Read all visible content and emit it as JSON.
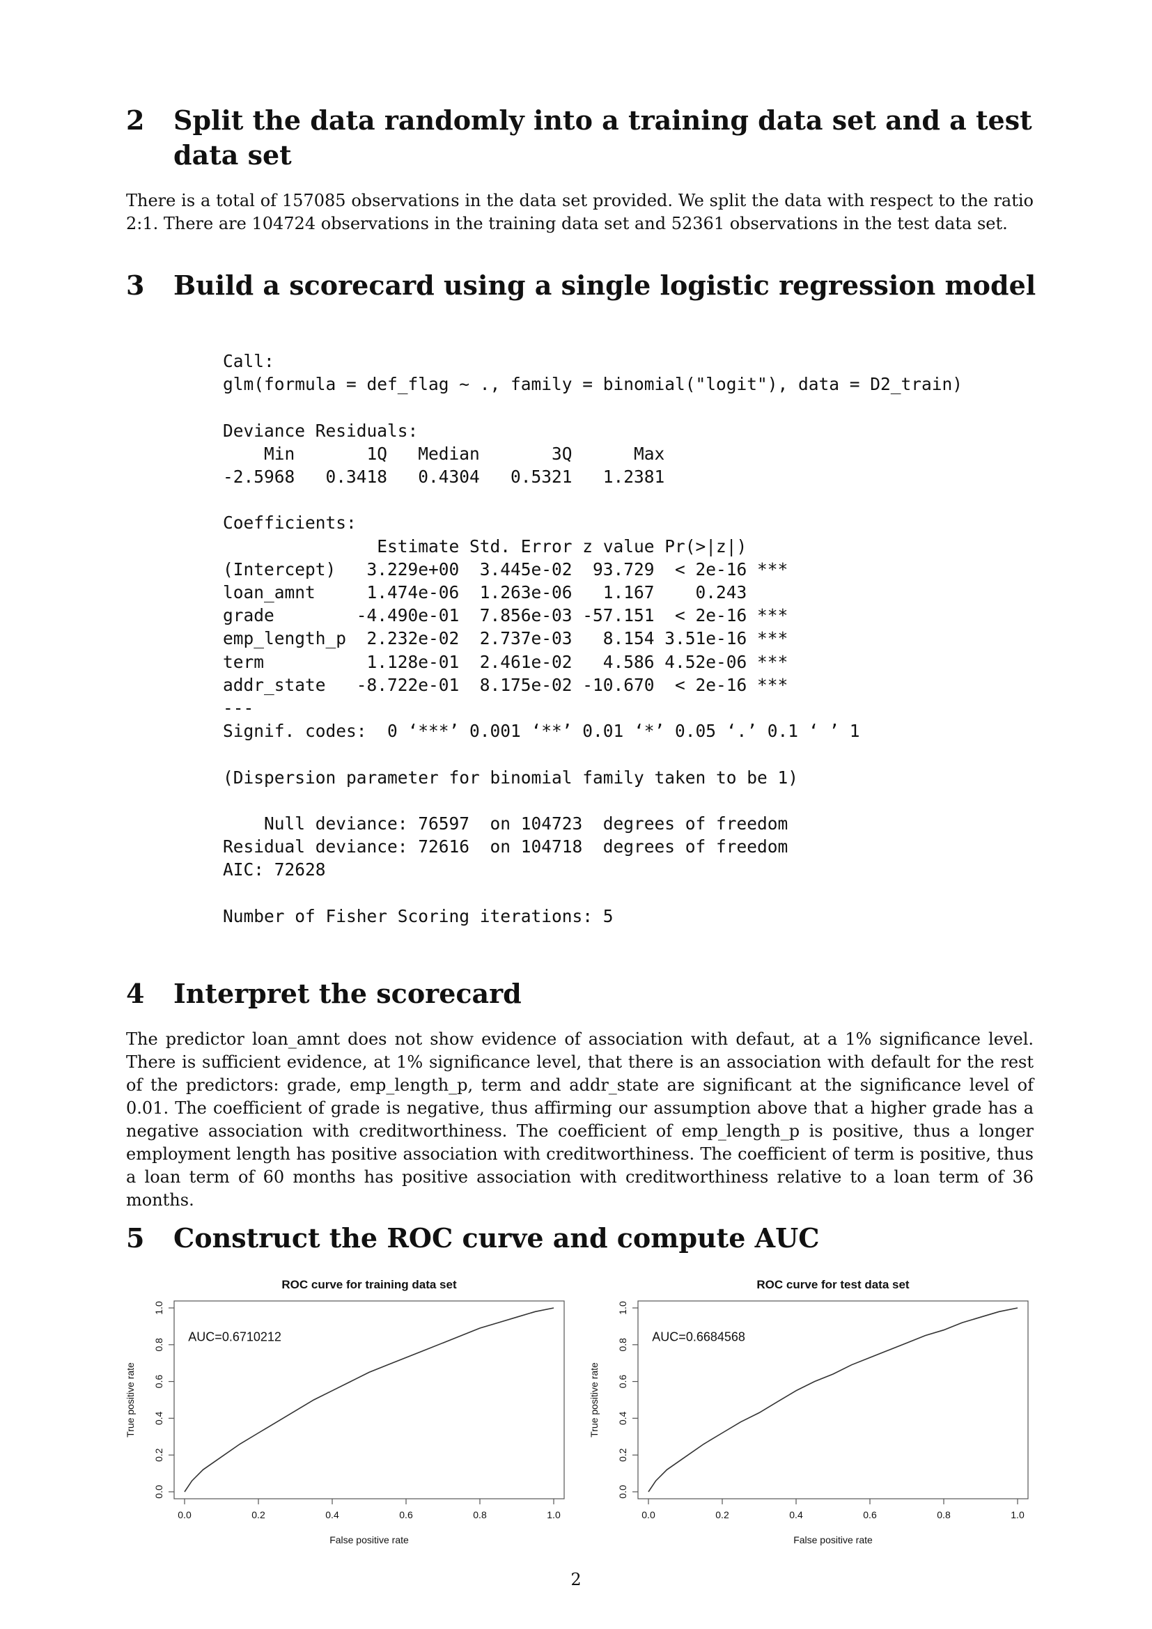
{
  "sections": [
    {
      "number": "2",
      "title": "Split the data randomly into a training data set and a test data set",
      "paragraph": "There is a total of 157085 observations in the data set provided. We split the data with respect to the ratio 2:1. There are 104724 observations in the training data set and 52361 observations in the test data set."
    },
    {
      "number": "3",
      "title": "Build a scorecard using a single logistic regression model"
    },
    {
      "number": "4",
      "title": "Interpret the scorecard",
      "paragraph": "The predictor loan_amnt does not show evidence of association with defaut, at a 1% significance level. There is sufficient evidence, at 1% significance level, that there is an association with default for the rest of the predictors: grade, emp_length_p, term and addr_state are significant at the significance level of 0.01. The coefficient of grade is negative, thus affirming our assumption above that a higher grade has a negative association with creditworthiness. The coefficient of emp_length_p is positive, thus a longer employment length has positive association with creditworthiness. The coefficient of term is positive, thus a loan term of 60 months has positive association with creditworthiness relative to a loan term of 36 months."
    },
    {
      "number": "5",
      "title": "Construct the ROC curve and compute AUC"
    }
  ],
  "r_output": "Call:\nglm(formula = def_flag ~ ., family = binomial(\"logit\"), data = D2_train)\n\nDeviance Residuals:\n    Min       1Q   Median       3Q      Max  \n-2.5968   0.3418   0.4304   0.5321   1.2381  \n\nCoefficients:\n               Estimate Std. Error z value Pr(>|z|)    \n(Intercept)   3.229e+00  3.445e-02  93.729  < 2e-16 ***\nloan_amnt     1.474e-06  1.263e-06   1.167    0.243    \ngrade        -4.490e-01  7.856e-03 -57.151  < 2e-16 ***\nemp_length_p  2.232e-02  2.737e-03   8.154 3.51e-16 ***\nterm          1.128e-01  2.461e-02   4.586 4.52e-06 ***\naddr_state   -8.722e-01  8.175e-02 -10.670  < 2e-16 ***\n---\nSignif. codes:  0 ‘***’ 0.001 ‘**’ 0.01 ‘*’ 0.05 ‘.’ 0.1 ‘ ’ 1\n\n(Dispersion parameter for binomial family taken to be 1)\n\n    Null deviance: 76597  on 104723  degrees of freedom\nResidual deviance: 72616  on 104718  degrees of freedom\nAIC: 72628\n\nNumber of Fisher Scoring iterations: 5",
  "page_number": "2",
  "chart_data": [
    {
      "type": "line",
      "title": "ROC curve for training data set",
      "xlabel": "False positive rate",
      "ylabel": "True positive rate",
      "xlim": [
        0,
        1
      ],
      "ylim": [
        0,
        1
      ],
      "xticks": [
        "0.0",
        "0.2",
        "0.4",
        "0.6",
        "0.8",
        "1.0"
      ],
      "yticks": [
        "0.0",
        "0.2",
        "0.4",
        "0.6",
        "0.8",
        "1.0"
      ],
      "annotation": "AUC=0.6710212",
      "grid": false,
      "series": [
        {
          "line_color": "#333333",
          "x": [
            0,
            0.02,
            0.05,
            0.1,
            0.15,
            0.2,
            0.25,
            0.3,
            0.35,
            0.4,
            0.45,
            0.5,
            0.55,
            0.6,
            0.65,
            0.7,
            0.75,
            0.8,
            0.85,
            0.9,
            0.95,
            1.0
          ],
          "y": [
            0,
            0.06,
            0.12,
            0.19,
            0.26,
            0.32,
            0.38,
            0.44,
            0.5,
            0.55,
            0.6,
            0.65,
            0.69,
            0.73,
            0.77,
            0.81,
            0.85,
            0.89,
            0.92,
            0.95,
            0.98,
            1.0
          ]
        }
      ]
    },
    {
      "type": "line",
      "title": "ROC curve for test data set",
      "xlabel": "False positive rate",
      "ylabel": "True positive rate",
      "xlim": [
        0,
        1
      ],
      "ylim": [
        0,
        1
      ],
      "xticks": [
        "0.0",
        "0.2",
        "0.4",
        "0.6",
        "0.8",
        "1.0"
      ],
      "yticks": [
        "0.0",
        "0.2",
        "0.4",
        "0.6",
        "0.8",
        "1.0"
      ],
      "annotation": "AUC=0.6684568",
      "grid": false,
      "series": [
        {
          "line_color": "#333333",
          "x": [
            0,
            0.02,
            0.05,
            0.1,
            0.15,
            0.2,
            0.25,
            0.3,
            0.35,
            0.4,
            0.45,
            0.5,
            0.55,
            0.6,
            0.65,
            0.7,
            0.75,
            0.8,
            0.85,
            0.9,
            0.95,
            1.0
          ],
          "y": [
            0,
            0.06,
            0.12,
            0.19,
            0.26,
            0.32,
            0.38,
            0.43,
            0.49,
            0.55,
            0.6,
            0.64,
            0.69,
            0.73,
            0.77,
            0.81,
            0.85,
            0.88,
            0.92,
            0.95,
            0.98,
            1.0
          ]
        }
      ]
    }
  ]
}
